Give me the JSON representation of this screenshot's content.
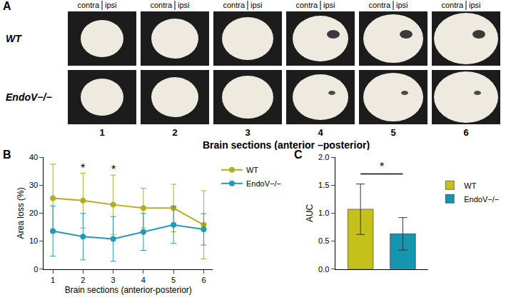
{
  "panel_a": {
    "panel": "A",
    "rows": [
      "WT",
      "EndoV−/−"
    ],
    "column_headers": [
      "contra",
      "ipsi"
    ],
    "sections": [
      "1",
      "2",
      "3",
      "4",
      "5",
      "6"
    ],
    "xlabel": "Brain sections (anterior –posterior)"
  },
  "chart_data": [
    {
      "panel": "B",
      "type": "line",
      "xlabel": "Brain sections (anterior-posterior)",
      "ylabel": "Area loss (%)",
      "x": [
        1,
        2,
        3,
        4,
        5,
        6
      ],
      "xlim": [
        0.7,
        6.3
      ],
      "xticks": [
        1,
        2,
        3,
        4,
        5,
        6
      ],
      "ylim": [
        0,
        40
      ],
      "yticks": [
        0,
        10,
        20,
        30,
        40
      ],
      "grid": false,
      "legend": "right",
      "marker": "circle",
      "series": [
        {
          "name": "WT",
          "color": "#b3ae1f",
          "values": [
            25.3,
            24.5,
            23.0,
            21.8,
            21.8,
            15.8
          ],
          "error": [
            12.2,
            9.8,
            10.6,
            7.1,
            8.5,
            12.2
          ]
        },
        {
          "name": "EndoV−/−",
          "color": "#1f9bb5",
          "values": [
            13.6,
            11.6,
            10.8,
            13.3,
            15.8,
            14.2
          ],
          "error": [
            9.0,
            8.3,
            8.0,
            6.6,
            6.6,
            5.6
          ]
        }
      ],
      "annotations": [
        {
          "text": "*",
          "x": 2,
          "y": 36
        },
        {
          "text": "*",
          "x": 3,
          "y": 35.5
        }
      ]
    },
    {
      "panel": "C",
      "type": "bar",
      "ylabel": "AUC",
      "categories": [
        "WT",
        "EndoV−/−"
      ],
      "values": [
        1.07,
        0.63
      ],
      "error": [
        0.45,
        0.29
      ],
      "colors": [
        "#c4c21a",
        "#1596b0"
      ],
      "ylim": [
        0,
        2
      ],
      "yticks": [
        {
          "value": 0,
          "label": "0.0"
        },
        {
          "value": 0.5,
          "label": "0.5"
        },
        {
          "value": 1,
          "label": "1.0"
        },
        {
          "value": 1.5,
          "label": "1.5"
        },
        {
          "value": 2,
          "label": "2.0"
        }
      ],
      "grid": false,
      "legend": "right",
      "tick_labels": "y",
      "annotations": [
        {
          "text": "*",
          "y": 1.7
        }
      ]
    }
  ]
}
